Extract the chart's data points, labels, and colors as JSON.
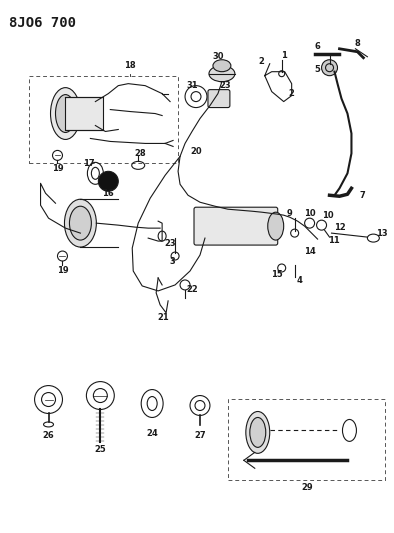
{
  "title": "8JO6 700",
  "background_color": "#ffffff",
  "fig_width": 3.94,
  "fig_height": 5.33,
  "dpi": 100
}
